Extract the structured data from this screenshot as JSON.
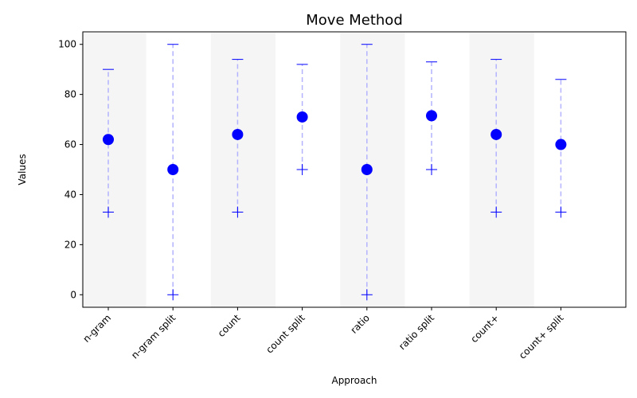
{
  "chart_data": {
    "type": "scatter",
    "title": "Move Method",
    "xlabel": "Approach",
    "ylabel": "Values",
    "ylim": [
      -5,
      105
    ],
    "yticks": [
      0,
      20,
      40,
      60,
      80,
      100
    ],
    "categories": [
      "n-gram",
      "n-gram split",
      "count",
      "count split",
      "ratio",
      "ratio split",
      "count+",
      "count+ split"
    ],
    "values": [
      62,
      50,
      64,
      71,
      50,
      71.5,
      64,
      60
    ],
    "min": [
      33,
      0,
      33,
      50,
      0,
      50,
      33,
      33
    ],
    "max": [
      90,
      100,
      94,
      92,
      100,
      93,
      94,
      86
    ],
    "shaded_bands": [
      "n-gram",
      "count",
      "ratio",
      "count+"
    ],
    "grid": false,
    "colors": {
      "point": "#0000ff",
      "range_line": "#b3b3ff",
      "band": "#f5f5f5"
    }
  }
}
